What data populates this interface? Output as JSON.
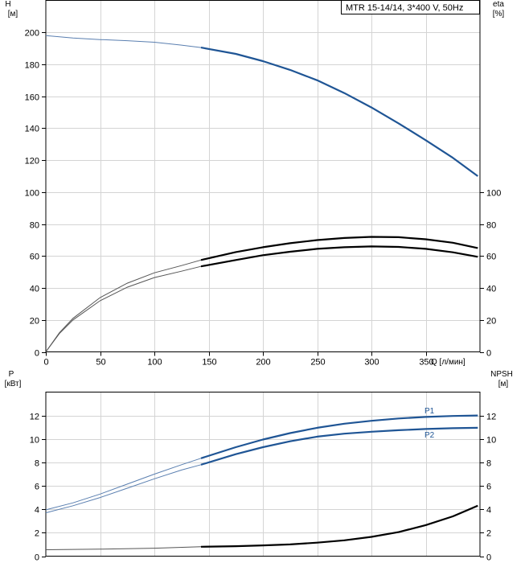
{
  "chart_data": [
    {
      "type": "line",
      "title": "MTR 15-14/14, 3*400 V, 50Hz",
      "xlabel": "Q [л/мин]",
      "xlim": [
        0,
        400
      ],
      "x_ticks": [
        0,
        50,
        100,
        150,
        200,
        250,
        300,
        350
      ],
      "left_axis": {
        "label_line1": "H",
        "label_line2": "[м]",
        "ylim": [
          0,
          220
        ],
        "ticks": [
          0,
          20,
          40,
          60,
          80,
          100,
          120,
          140,
          160,
          180,
          200
        ]
      },
      "right_axis": {
        "label_line1": "eta",
        "label_line2": "[%]",
        "ylim": [
          0,
          220
        ],
        "ticks": [
          0,
          20,
          40,
          60,
          80,
          100
        ]
      },
      "grid": true,
      "series": [
        {
          "axis": "left",
          "color": "#1f5595",
          "operating_from": 143,
          "x": [
            0,
            25,
            50,
            75,
            100,
            125,
            143,
            175,
            200,
            225,
            250,
            275,
            300,
            325,
            350,
            375,
            398
          ],
          "values": [
            198,
            196.5,
            195.5,
            194.8,
            193.8,
            192,
            190.5,
            186.5,
            182,
            176.5,
            170,
            162,
            153,
            143,
            132.5,
            121.5,
            110
          ]
        },
        {
          "axis": "right",
          "color": "#000000",
          "operating_from": 143,
          "x": [
            0,
            12.5,
            25,
            50,
            75,
            100,
            125,
            143,
            175,
            200,
            225,
            250,
            275,
            300,
            325,
            350,
            375,
            398
          ],
          "values": [
            0,
            12,
            21,
            34,
            43,
            49.5,
            54,
            57.5,
            62.5,
            65.5,
            68,
            70,
            71.3,
            72,
            71.8,
            70.5,
            68.3,
            65
          ]
        },
        {
          "axis": "right",
          "color": "#000000",
          "operating_from": 143,
          "x": [
            0,
            12.5,
            25,
            50,
            75,
            100,
            125,
            143,
            175,
            200,
            225,
            250,
            275,
            300,
            325,
            350,
            375,
            398
          ],
          "values": [
            0,
            11.5,
            20,
            32,
            40.5,
            46.5,
            50.5,
            53.5,
            57.5,
            60.5,
            62.7,
            64.5,
            65.5,
            66,
            65.7,
            64.5,
            62.3,
            59.5
          ]
        }
      ]
    },
    {
      "type": "line",
      "xlim": [
        0,
        400
      ],
      "x_ticks": [
        0,
        50,
        100,
        150,
        200,
        250,
        300,
        350
      ],
      "left_axis": {
        "label_line1": "P",
        "label_line2": "[кВт]",
        "ylim": [
          0,
          14
        ],
        "ticks": [
          0,
          2,
          4,
          6,
          8,
          10,
          12
        ]
      },
      "right_axis": {
        "label_line1": "NPSH",
        "label_line2": "[м]",
        "ylim": [
          0,
          14
        ],
        "ticks": [
          0,
          2,
          4,
          6,
          8,
          10,
          12
        ]
      },
      "grid": true,
      "series": [
        {
          "name": "P1",
          "axis": "left",
          "color": "#1f5595",
          "operating_from": 143,
          "x": [
            0,
            25,
            50,
            75,
            100,
            125,
            143,
            175,
            200,
            225,
            250,
            275,
            300,
            325,
            350,
            375,
            398
          ],
          "values": [
            3.95,
            4.55,
            5.3,
            6.15,
            7,
            7.8,
            8.35,
            9.3,
            9.95,
            10.5,
            10.95,
            11.3,
            11.55,
            11.75,
            11.88,
            11.96,
            12.0
          ]
        },
        {
          "name": "P2",
          "axis": "left",
          "color": "#1f5595",
          "operating_from": 143,
          "x": [
            0,
            25,
            50,
            75,
            100,
            125,
            143,
            175,
            200,
            225,
            250,
            275,
            300,
            325,
            350,
            375,
            398
          ],
          "values": [
            3.7,
            4.3,
            5.0,
            5.8,
            6.6,
            7.35,
            7.8,
            8.7,
            9.3,
            9.8,
            10.2,
            10.45,
            10.62,
            10.75,
            10.85,
            10.92,
            10.95
          ]
        },
        {
          "axis": "right",
          "color": "#000000",
          "operating_from": 143,
          "x": [
            0,
            50,
            100,
            143,
            175,
            200,
            225,
            250,
            275,
            300,
            325,
            350,
            375,
            398
          ],
          "values": [
            0.55,
            0.6,
            0.68,
            0.8,
            0.85,
            0.92,
            1.0,
            1.15,
            1.35,
            1.65,
            2.05,
            2.65,
            3.4,
            4.3
          ]
        }
      ]
    }
  ]
}
